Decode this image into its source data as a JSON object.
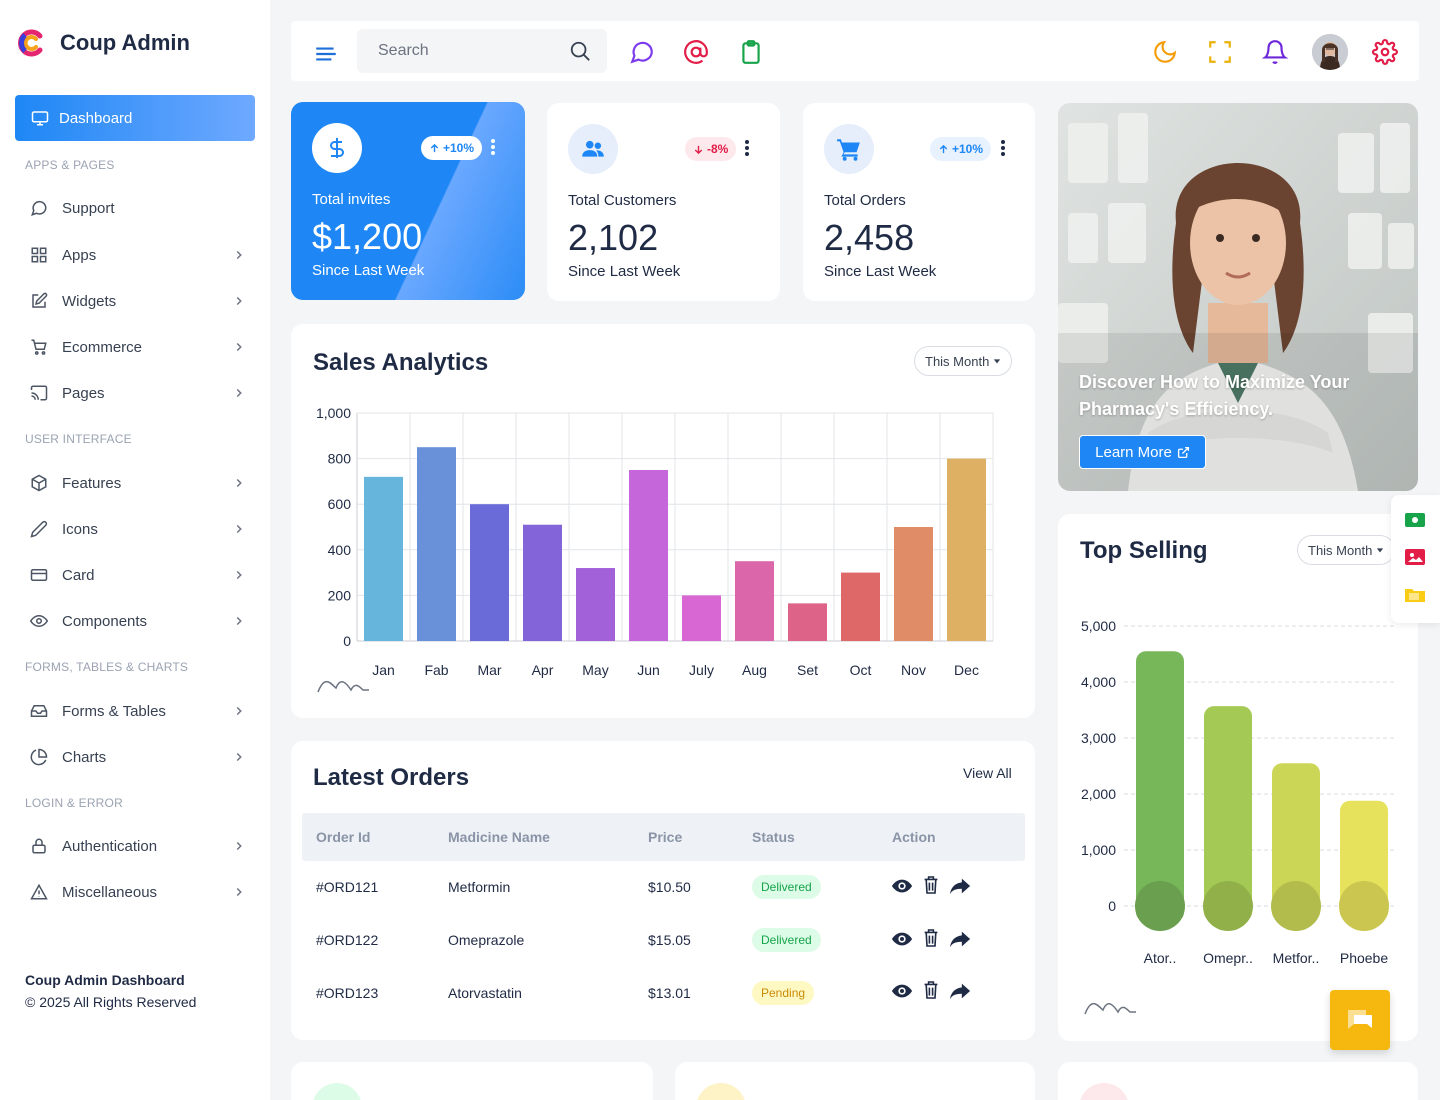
{
  "brand": {
    "name": "Coup Admin"
  },
  "sidebar": {
    "active": "Dashboard",
    "sections": {
      "apps": "APPS & PAGES",
      "ui": "USER INTERFACE",
      "forms": "FORMS, TABLES & CHARTS",
      "login": "LOGIN & ERROR"
    },
    "items": {
      "support": "Support",
      "apps": "Apps",
      "widgets": "Widgets",
      "ecommerce": "Ecommerce",
      "pages": "Pages",
      "features": "Features",
      "icons": "Icons",
      "card": "Card",
      "components": "Components",
      "forms_tables": "Forms & Tables",
      "charts": "Charts",
      "authentication": "Authentication",
      "miscellaneous": "Miscellaneous"
    },
    "footer": {
      "title": "Coup Admin Dashboard",
      "copyright": "© 2025 All Rights Reserved"
    }
  },
  "topbar": {
    "search_placeholder": "Search"
  },
  "stats": {
    "invites": {
      "label": "Total invites",
      "value": "$1,200",
      "sub": "Since Last Week",
      "change": "+10%"
    },
    "customers": {
      "label": "Total Customers",
      "value": "2,102",
      "sub": "Since Last Week",
      "change": "-8%"
    },
    "orders": {
      "label": "Total Orders",
      "value": "2,458",
      "sub": "Since Last Week",
      "change": "+10%"
    }
  },
  "promo": {
    "text": "Discover How to Maximize Your Pharmacy's Efficiency.",
    "button": "Learn More"
  },
  "sales": {
    "title": "Sales Analytics",
    "filter": "This Month"
  },
  "top_selling": {
    "title": "Top Selling",
    "filter": "This Month"
  },
  "orders": {
    "title": "Latest Orders",
    "view_all": "View All",
    "columns": [
      "Order Id",
      "Madicine Name",
      "Price",
      "Status",
      "Action"
    ],
    "rows": [
      {
        "id": "#ORD121",
        "name": "Metformin",
        "price": "$10.50",
        "status": "Delivered"
      },
      {
        "id": "#ORD122",
        "name": "Omeprazole",
        "price": "$15.05",
        "status": "Delivered"
      },
      {
        "id": "#ORD123",
        "name": "Atorvastatin",
        "price": "$13.01",
        "status": "Pending"
      }
    ]
  },
  "colors": {
    "accent": "#1e87f5",
    "delivered": "#16a34a",
    "pending": "#d4a307",
    "chat": "#f6b80e"
  },
  "chart_data": [
    {
      "type": "bar",
      "title": "Sales Analytics",
      "categories": [
        "Jan",
        "Fab",
        "Mar",
        "Apr",
        "May",
        "Jun",
        "July",
        "Aug",
        "Set",
        "Oct",
        "Nov",
        "Dec"
      ],
      "values": [
        720,
        850,
        600,
        510,
        320,
        750,
        200,
        350,
        165,
        300,
        500,
        800
      ],
      "colors": [
        "#65b5dd",
        "#6891da",
        "#6a6bd9",
        "#8464d9",
        "#a261d8",
        "#c666db",
        "#d866d3",
        "#dc66aa",
        "#dd6388",
        "#de6767",
        "#e08d67",
        "#ddb064"
      ],
      "ylim": [
        0,
        1000
      ],
      "yticks": [
        "0",
        "200",
        "400",
        "600",
        "800",
        "1,000"
      ],
      "grid": true
    },
    {
      "type": "bar",
      "title": "Top Selling",
      "categories": [
        "Ator..",
        "Omepr..",
        "Metfor..",
        "Phoebe"
      ],
      "values": [
        4550,
        3570,
        2550,
        1880
      ],
      "colors": [
        "#78b65a",
        "#a5c955",
        "#cbd657",
        "#e6e25b"
      ],
      "ylim": [
        0,
        5000
      ],
      "yticks": [
        "0",
        "1,000",
        "2,000",
        "3,000",
        "4,000",
        "5,000"
      ],
      "grid": true
    }
  ]
}
